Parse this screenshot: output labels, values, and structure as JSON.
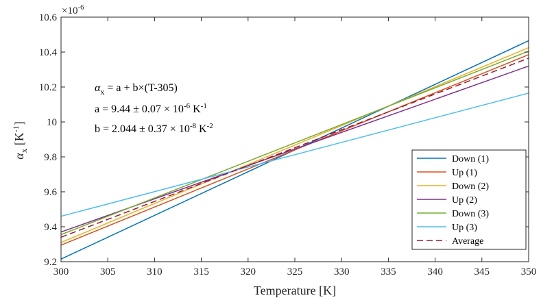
{
  "chart_data": {
    "type": "line",
    "title": "",
    "xlabel": "Temperature [K]",
    "ylabel_main": "α",
    "ylabel_sub": "x",
    "ylabel_unit": " [K",
    "ylabel_exp": "-1",
    "ylabel_close": "]",
    "y_exponent_prefix": "×10",
    "y_exponent": "-6",
    "xlim": [
      300,
      350
    ],
    "ylim": [
      9.2,
      10.6
    ],
    "x_ticks": [
      "300",
      "305",
      "310",
      "315",
      "320",
      "325",
      "330",
      "335",
      "340",
      "345",
      "350"
    ],
    "y_ticks": [
      "9.2",
      "9.4",
      "9.6",
      "9.8",
      "10",
      "10.2",
      "10.4",
      "10.6"
    ],
    "x_tick_values": [
      300,
      305,
      310,
      315,
      320,
      325,
      330,
      335,
      340,
      345,
      350
    ],
    "y_tick_values": [
      9.2,
      9.4,
      9.6,
      9.8,
      10.0,
      10.2,
      10.4,
      10.6
    ],
    "grid": false,
    "legend_position": "bottom-right",
    "series": [
      {
        "name": "Down (1)",
        "color": "#0072BD",
        "dash": "solid",
        "x": [
          300,
          350
        ],
        "values": [
          9.215,
          10.465
        ]
      },
      {
        "name": "Up (1)",
        "color": "#D95319",
        "dash": "solid",
        "x": [
          300,
          350
        ],
        "values": [
          9.295,
          10.385
        ]
      },
      {
        "name": "Down (2)",
        "color": "#EDB120",
        "dash": "solid",
        "x": [
          300,
          350
        ],
        "values": [
          9.31,
          10.425
        ]
      },
      {
        "name": "Up (2)",
        "color": "#7E2F8E",
        "dash": "solid",
        "x": [
          300,
          350
        ],
        "values": [
          9.37,
          10.32
        ]
      },
      {
        "name": "Down (3)",
        "color": "#77AC30",
        "dash": "solid",
        "x": [
          300,
          350
        ],
        "values": [
          9.355,
          10.405
        ]
      },
      {
        "name": "Up (3)",
        "color": "#4DBEEE",
        "dash": "solid",
        "x": [
          300,
          350
        ],
        "values": [
          9.46,
          10.165
        ]
      },
      {
        "name": "Average",
        "color": "#A2142F",
        "dash": "dashed",
        "x": [
          300,
          350
        ],
        "values": [
          9.34,
          10.365
        ]
      }
    ],
    "annotations": {
      "line1_alpha": "α",
      "line1_sub": "x",
      "line1_rest": " = a + b×(T-305)",
      "line2_main": "a = 9.44 ± 0.07 × 10",
      "line2_exp": "-6",
      "line2_unit": " K",
      "line2_unit_exp": "-1",
      "line3_main": "b = 2.044 ± 0.37 × 10",
      "line3_exp": "-8",
      "line3_unit": " K",
      "line3_unit_exp": "-2"
    }
  }
}
